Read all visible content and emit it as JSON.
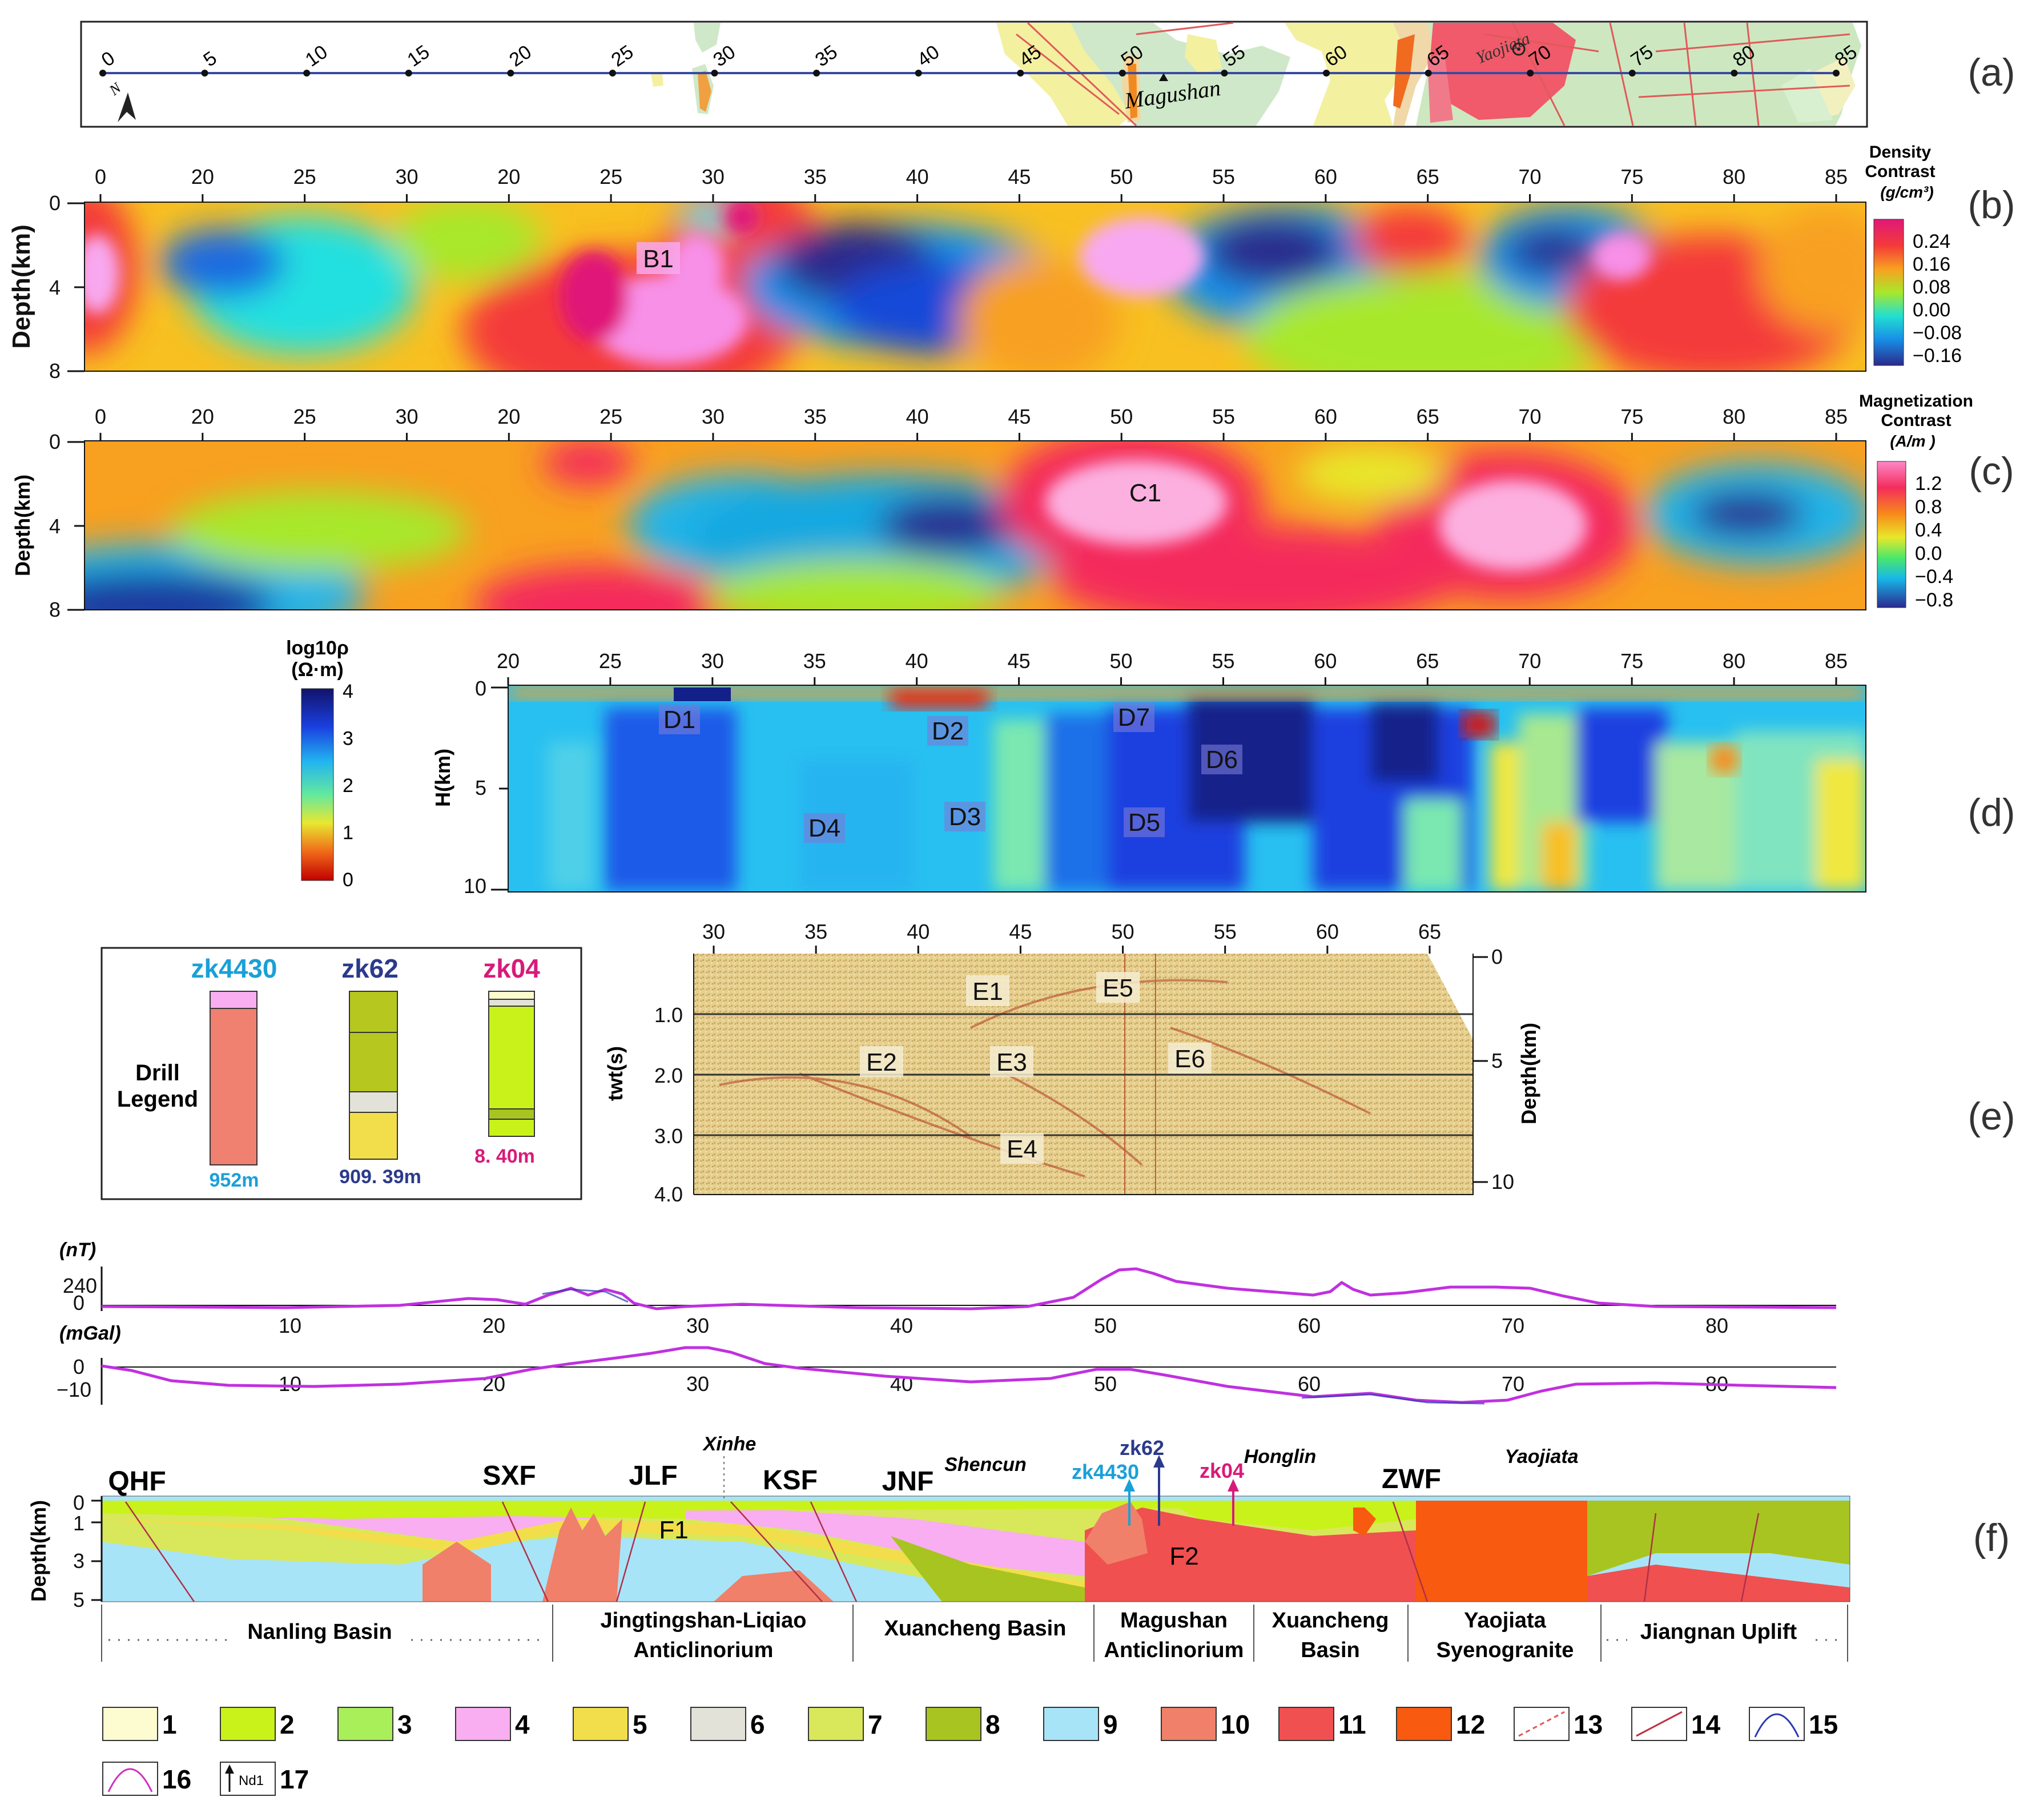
{
  "panel_tags": [
    "(a)",
    "(b)",
    "(c)",
    "(d)",
    "(e)",
    "(f)"
  ],
  "map": {
    "ticks": [
      "0",
      "5",
      "10",
      "15",
      "20",
      "25",
      "30",
      "35",
      "40",
      "45",
      "50",
      "55",
      "60",
      "65",
      "70",
      "75",
      "80",
      "85"
    ],
    "places": {
      "magushan": "Magushan",
      "yaojiata": "Yaojiata"
    },
    "north": "N"
  },
  "density": {
    "title_l1": "Density",
    "title_l2": "Contrast",
    "units": "(g/cm³)",
    "ticks_top": [
      "0",
      "20",
      "25",
      "30",
      "20",
      "25",
      "30",
      "35",
      "40",
      "45",
      "50",
      "55",
      "60",
      "65",
      "70",
      "75",
      "80",
      "85"
    ],
    "depth_label": "Depth(km)",
    "depth_ticks": [
      "0",
      "4",
      "8"
    ],
    "scale": [
      "0.24",
      "0.16",
      "0.08",
      "0.00",
      "−0.08",
      "−0.16"
    ],
    "anomaly": "B1"
  },
  "magnet": {
    "title_l1": "Magnetization",
    "title_l2": "Contrast",
    "units": "(A/m )",
    "ticks_top": [
      "0",
      "20",
      "25",
      "30",
      "20",
      "25",
      "30",
      "35",
      "40",
      "45",
      "50",
      "55",
      "60",
      "65",
      "70",
      "75",
      "80",
      "85"
    ],
    "depth_label": "Depth(km)",
    "depth_ticks": [
      "0",
      "4",
      "8"
    ],
    "scale": [
      "1.2",
      "0.8",
      "0.4",
      "0.0",
      "−0.4",
      "−0.8"
    ],
    "anomaly": "C1"
  },
  "resist": {
    "title_l1": "log10ρ",
    "title_l2": "(Ω·m)",
    "scale": [
      "4",
      "3",
      "2",
      "1",
      "0"
    ],
    "ticks_top": [
      "20",
      "25",
      "30",
      "35",
      "40",
      "45",
      "50",
      "55",
      "60",
      "65",
      "70",
      "75",
      "80",
      "85"
    ],
    "h_label": "H(km)",
    "h_ticks": [
      "0",
      "5",
      "10"
    ],
    "anomalies": [
      "D1",
      "D2",
      "D3",
      "D4",
      "D5",
      "D6",
      "D7"
    ]
  },
  "drill": {
    "title_l1": "Drill",
    "title_l2": "Legend",
    "holes": [
      {
        "name": "zk4430",
        "depth": "952m",
        "color": "#1aa0d8"
      },
      {
        "name": "zk62",
        "depth": "909. 39m",
        "color": "#2b3a8c"
      },
      {
        "name": "zk04",
        "depth": "8. 40m",
        "color": "#d81b7a"
      }
    ]
  },
  "seismic": {
    "ticks_top": [
      "30",
      "35",
      "40",
      "45",
      "50",
      "55",
      "60",
      "65"
    ],
    "twt_label": "twt(s)",
    "twt_ticks": [
      "1.0",
      "2.0",
      "3.0",
      "4.0"
    ],
    "depth_label": "Depth(km)",
    "depth_ticks": [
      "0",
      "5",
      "10"
    ],
    "anomalies": [
      "E1",
      "E2",
      "E3",
      "E4",
      "E5",
      "E6"
    ]
  },
  "profiles": {
    "mag_unit": "(nT)",
    "mag_ticks": [
      "240",
      "0"
    ],
    "grav_unit": "(mGal)",
    "grav_ticks": [
      "0",
      "−10"
    ],
    "x_ticks": [
      "10",
      "20",
      "30",
      "40",
      "50",
      "60",
      "70",
      "80"
    ]
  },
  "section": {
    "depth_label": "Depth(km)",
    "depth_ticks": [
      "0",
      "1",
      "3",
      "5"
    ],
    "faults": [
      "QHF",
      "SXF",
      "JLF",
      "KSF",
      "JNF",
      "ZWF"
    ],
    "places": [
      "Xinhe",
      "Shencun",
      "Honglin",
      "Yaojiata"
    ],
    "drills": [
      "zk4430",
      "zk62",
      "zk04"
    ],
    "inner": [
      "F1",
      "F2"
    ],
    "units": [
      {
        "l1": "Nanling Basin",
        "l2": ""
      },
      {
        "l1": "Jingtingshan-Liqiao",
        "l2": "Anticlinorium"
      },
      {
        "l1": "Xuancheng Basin",
        "l2": ""
      },
      {
        "l1": "Magushan",
        "l2": "Anticlinorium"
      },
      {
        "l1": "Xuancheng",
        "l2": "Basin"
      },
      {
        "l1": "Yaojiata",
        "l2": "Syenogranite"
      },
      {
        "l1": "Jiangnan Uplift",
        "l2": ""
      }
    ]
  },
  "legend": {
    "items": [
      {
        "num": "1",
        "color": "#fdfbd0"
      },
      {
        "num": "2",
        "color": "#c8f21a"
      },
      {
        "num": "3",
        "color": "#a8ef5a"
      },
      {
        "num": "4",
        "color": "#f8aef0"
      },
      {
        "num": "5",
        "color": "#f2de4a"
      },
      {
        "num": "6",
        "color": "#e2e2d8"
      },
      {
        "num": "7",
        "color": "#d8e85a"
      },
      {
        "num": "8",
        "color": "#a8c420"
      },
      {
        "num": "9",
        "color": "#a8e4f8"
      },
      {
        "num": "10",
        "color": "#f0806a"
      },
      {
        "num": "11",
        "color": "#f05050"
      },
      {
        "num": "12",
        "color": "#f85a10"
      },
      {
        "num": "13",
        "color": "#ffffff"
      },
      {
        "num": "14",
        "color": "#ffffff"
      },
      {
        "num": "15",
        "color": "#ffffff"
      },
      {
        "num": "16",
        "color": "#ffffff"
      },
      {
        "num": "17",
        "color": "#ffffff"
      }
    ],
    "nd_label": "Nd1"
  }
}
